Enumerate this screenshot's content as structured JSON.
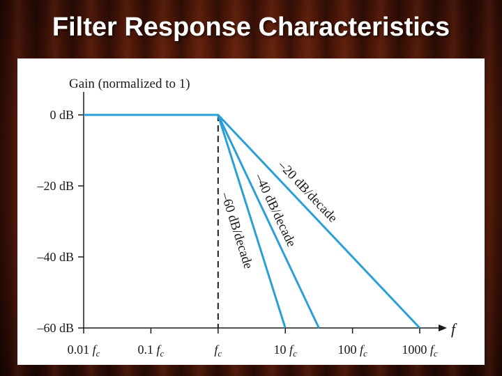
{
  "slide": {
    "title": "Filter Response Characteristics"
  },
  "chart_data": {
    "type": "line",
    "ylabel": "Gain (normalized to 1)",
    "xlabel": "f",
    "x_scale": "log",
    "x_unit": "fc",
    "xlim": [
      0.01,
      1000
    ],
    "ylim": [
      -60,
      0
    ],
    "x_ticks": [
      {
        "value": 0.01,
        "coef": "0.01",
        "sym": "f",
        "sub": "c"
      },
      {
        "value": 0.1,
        "coef": "0.1",
        "sym": "f",
        "sub": "c"
      },
      {
        "value": 1,
        "coef": "",
        "sym": "f",
        "sub": "c"
      },
      {
        "value": 10,
        "coef": "10",
        "sym": "f",
        "sub": "c"
      },
      {
        "value": 100,
        "coef": "100",
        "sym": "f",
        "sub": "c"
      },
      {
        "value": 1000,
        "coef": "1000",
        "sym": "f",
        "sub": "c"
      }
    ],
    "y_ticks": [
      {
        "value": 0,
        "label": "0 dB"
      },
      {
        "value": -20,
        "label": "–20 dB"
      },
      {
        "value": -40,
        "label": "–40 dB"
      },
      {
        "value": -60,
        "label": "–60 dB"
      }
    ],
    "series": [
      {
        "x": [
          0.01,
          1,
          1000
        ],
        "y": [
          0,
          0,
          -60
        ],
        "label": "–20 dB/decade"
      },
      {
        "x": [
          1,
          31.6
        ],
        "y": [
          0,
          -60
        ],
        "label": "–40 dB/decade"
      },
      {
        "x": [
          1,
          10
        ],
        "y": [
          0,
          -60
        ],
        "label": "–60 dB/decade"
      }
    ],
    "cutoff_marker": {
      "x": 1,
      "style": "dashed"
    },
    "line_color": "#2a9fd6",
    "grid": false
  }
}
